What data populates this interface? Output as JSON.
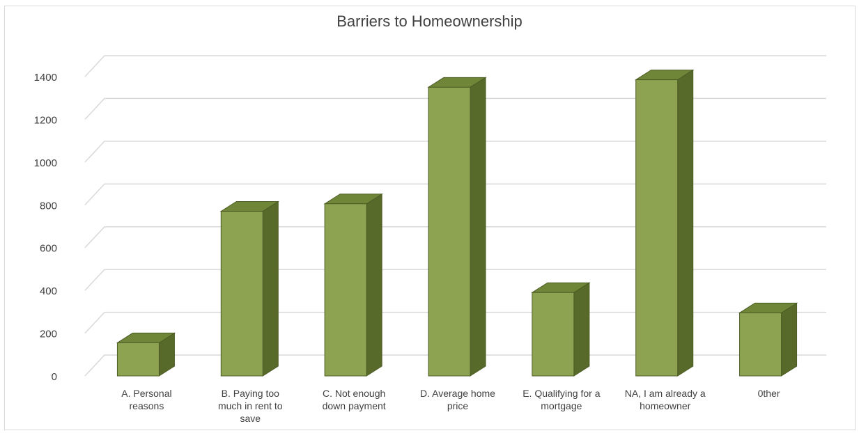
{
  "chart_data": {
    "type": "bar",
    "title": "Barriers to Homeownership",
    "categories": [
      [
        "A. Personal",
        "reasons"
      ],
      [
        "B. Paying too",
        "much in rent to",
        "save"
      ],
      [
        "C. Not enough",
        "down payment"
      ],
      [
        "D. Average home",
        "price"
      ],
      [
        "E. Qualifying for a",
        "mortgage"
      ],
      [
        "NA, I am already a",
        "homeowner"
      ],
      [
        "0ther"
      ]
    ],
    "values": [
      155,
      770,
      805,
      1350,
      390,
      1385,
      295
    ],
    "ylim": [
      0,
      1400
    ],
    "yticks": [
      0,
      200,
      400,
      600,
      800,
      1000,
      1200,
      1400
    ],
    "grid": true,
    "colors": {
      "front": "#8da352",
      "side": "#586a2a",
      "top": "#6f8638",
      "edge": "#4c5c24",
      "grid": "#d9d9d9"
    }
  }
}
